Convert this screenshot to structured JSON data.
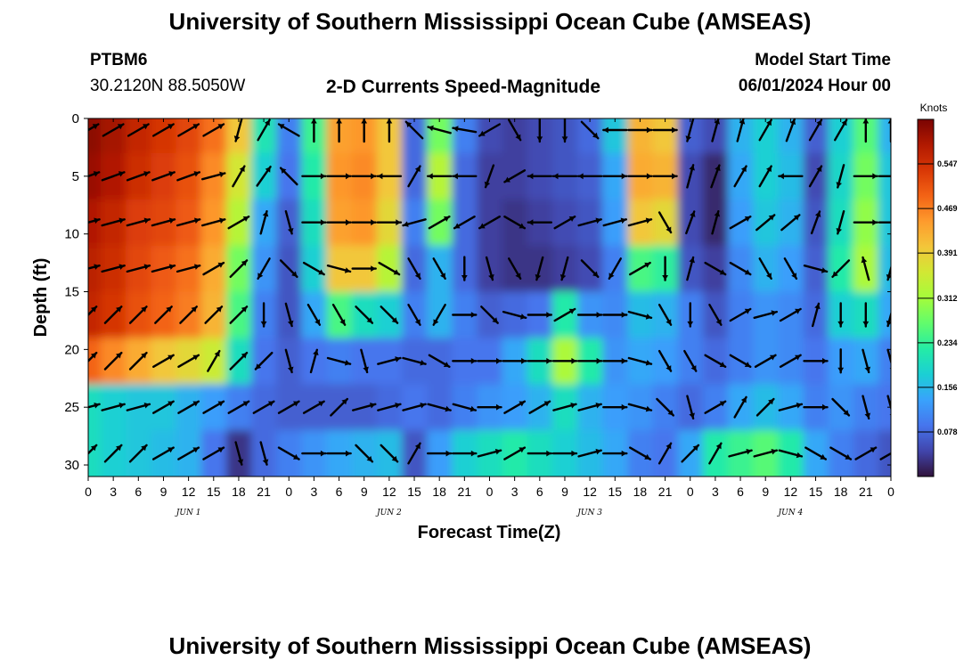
{
  "page": {
    "title": "University of Southern Mississippi Ocean Cube (AMSEAS)",
    "footer_title": "University of Southern Mississippi Ocean Cube (AMSEAS)",
    "station": "PTBM6",
    "coords": "30.2120N  88.5050W",
    "model_start_label": "Model Start Time",
    "model_start_value": "06/01/2024 Hour 00"
  },
  "chart_data": {
    "type": "heatmap",
    "title": "2-D Currents Speed-Magnitude",
    "xlabel": "Forecast Time(Z)",
    "ylabel": "Depth (ft)",
    "x_range_hours": [
      0,
      96
    ],
    "ylim": [
      0,
      31
    ],
    "y_inverted": true,
    "x_ticks": [
      "0",
      "3",
      "6",
      "9",
      "12",
      "15",
      "18",
      "21",
      "0",
      "3",
      "6",
      "9",
      "12",
      "15",
      "18",
      "21",
      "0",
      "3",
      "6",
      "9",
      "12",
      "15",
      "18",
      "21",
      "0",
      "3",
      "6",
      "9",
      "12",
      "15",
      "18",
      "21",
      "0"
    ],
    "y_ticks": [
      "0",
      "5",
      "10",
      "15",
      "20",
      "25",
      "30"
    ],
    "day_labels": [
      "JUN 1",
      "JUN 2",
      "JUN 3",
      "JUN 4"
    ],
    "colorbar": {
      "unit": "Knots",
      "ticks": [
        "0.547",
        "0.469",
        "0.391",
        "0.312",
        "0.234",
        "0.156",
        "0.078"
      ],
      "tick_values": [
        0.547,
        0.469,
        0.391,
        0.312,
        0.234,
        0.156,
        0.078
      ],
      "range": [
        0,
        0.625
      ],
      "colors": [
        "#30123b",
        "#4145ab",
        "#4675ed",
        "#39a2fc",
        "#1bcfd4",
        "#24eca6",
        "#61fc6c",
        "#a4fc3b",
        "#d1e834",
        "#f3c63a",
        "#fe9b2d",
        "#f36315",
        "#d93806",
        "#b11901",
        "#7a0402"
      ]
    },
    "depths_ft": [
      1,
      5,
      9,
      13,
      17,
      21,
      25,
      29
    ],
    "hours": [
      0,
      3,
      6,
      9,
      12,
      15,
      18,
      21,
      24,
      27,
      30,
      33,
      36,
      39,
      42,
      45,
      48,
      51,
      54,
      57,
      60,
      63,
      66,
      69,
      72,
      75,
      78,
      81,
      84,
      87,
      90,
      93,
      96
    ],
    "speed_knots": [
      [
        0.61,
        0.59,
        0.56,
        0.54,
        0.52,
        0.48,
        0.4,
        0.21,
        0.1,
        0.24,
        0.44,
        0.45,
        0.4,
        0.08,
        0.28,
        0.1,
        0.05,
        0.04,
        0.05,
        0.06,
        0.08,
        0.17,
        0.42,
        0.4,
        0.07,
        0.05,
        0.15,
        0.18,
        0.15,
        0.07,
        0.18,
        0.26,
        0.15
      ],
      [
        0.6,
        0.58,
        0.55,
        0.53,
        0.51,
        0.46,
        0.36,
        0.18,
        0.09,
        0.22,
        0.45,
        0.46,
        0.4,
        0.08,
        0.33,
        0.08,
        0.04,
        0.04,
        0.05,
        0.06,
        0.07,
        0.14,
        0.43,
        0.42,
        0.05,
        0.02,
        0.14,
        0.18,
        0.16,
        0.05,
        0.19,
        0.28,
        0.17
      ],
      [
        0.58,
        0.56,
        0.53,
        0.52,
        0.5,
        0.45,
        0.33,
        0.14,
        0.07,
        0.2,
        0.44,
        0.45,
        0.38,
        0.1,
        0.28,
        0.08,
        0.04,
        0.03,
        0.04,
        0.05,
        0.06,
        0.13,
        0.4,
        0.38,
        0.05,
        0.02,
        0.13,
        0.17,
        0.15,
        0.06,
        0.2,
        0.3,
        0.17
      ],
      [
        0.57,
        0.55,
        0.52,
        0.5,
        0.48,
        0.43,
        0.28,
        0.12,
        0.06,
        0.18,
        0.4,
        0.4,
        0.33,
        0.08,
        0.15,
        0.08,
        0.04,
        0.03,
        0.03,
        0.04,
        0.05,
        0.1,
        0.25,
        0.23,
        0.06,
        0.04,
        0.11,
        0.15,
        0.13,
        0.07,
        0.22,
        0.32,
        0.16
      ],
      [
        0.56,
        0.54,
        0.51,
        0.49,
        0.47,
        0.42,
        0.25,
        0.1,
        0.06,
        0.14,
        0.25,
        0.2,
        0.18,
        0.1,
        0.15,
        0.1,
        0.07,
        0.08,
        0.09,
        0.22,
        0.12,
        0.11,
        0.16,
        0.15,
        0.1,
        0.06,
        0.1,
        0.12,
        0.11,
        0.08,
        0.18,
        0.2,
        0.14
      ],
      [
        0.49,
        0.46,
        0.43,
        0.4,
        0.38,
        0.35,
        0.2,
        0.09,
        0.07,
        0.09,
        0.1,
        0.09,
        0.09,
        0.08,
        0.08,
        0.09,
        0.09,
        0.14,
        0.2,
        0.32,
        0.22,
        0.12,
        0.14,
        0.13,
        0.1,
        0.08,
        0.1,
        0.12,
        0.11,
        0.09,
        0.13,
        0.14,
        0.1
      ],
      [
        0.2,
        0.18,
        0.17,
        0.17,
        0.15,
        0.13,
        0.1,
        0.08,
        0.07,
        0.07,
        0.07,
        0.07,
        0.08,
        0.09,
        0.08,
        0.1,
        0.12,
        0.13,
        0.15,
        0.2,
        0.15,
        0.13,
        0.12,
        0.1,
        0.08,
        0.1,
        0.14,
        0.16,
        0.14,
        0.1,
        0.12,
        0.1,
        0.09
      ],
      [
        0.2,
        0.18,
        0.17,
        0.16,
        0.15,
        0.09,
        0.03,
        0.08,
        0.1,
        0.12,
        0.14,
        0.15,
        0.16,
        0.06,
        0.13,
        0.18,
        0.2,
        0.22,
        0.2,
        0.18,
        0.16,
        0.14,
        0.1,
        0.09,
        0.14,
        0.22,
        0.24,
        0.26,
        0.22,
        0.14,
        0.1,
        0.08,
        0.06
      ]
    ],
    "vector_depths_ft": [
      1,
      5,
      9,
      13,
      17,
      21,
      25,
      29
    ],
    "vector_hours": [
      0,
      3,
      6,
      9,
      12,
      15,
      18,
      21,
      24,
      27,
      30,
      33,
      36,
      39,
      42,
      45,
      48,
      51,
      54,
      57,
      60,
      63,
      66,
      69,
      72,
      75,
      78,
      81,
      84,
      87,
      90,
      93,
      96
    ],
    "vector_direction_deg": [
      [
        60,
        60,
        60,
        60,
        60,
        60,
        195,
        30,
        300,
        0,
        0,
        0,
        0,
        315,
        285,
        280,
        240,
        150,
        180,
        180,
        135,
        270,
        90,
        90,
        195,
        15,
        15,
        30,
        20,
        30,
        30,
        0,
        0
      ],
      [
        70,
        70,
        70,
        70,
        70,
        75,
        30,
        35,
        315,
        90,
        90,
        90,
        270,
        30,
        270,
        270,
        200,
        240,
        270,
        270,
        270,
        90,
        90,
        90,
        15,
        20,
        30,
        30,
        270,
        30,
        195,
        90,
        90
      ],
      [
        75,
        75,
        75,
        75,
        75,
        75,
        60,
        15,
        165,
        90,
        90,
        90,
        90,
        255,
        60,
        240,
        240,
        120,
        270,
        60,
        75,
        75,
        75,
        150,
        20,
        15,
        60,
        50,
        50,
        20,
        195,
        90,
        90
      ],
      [
        75,
        75,
        75,
        75,
        75,
        60,
        45,
        210,
        135,
        120,
        105,
        90,
        120,
        150,
        150,
        180,
        165,
        150,
        195,
        195,
        135,
        210,
        60,
        180,
        15,
        120,
        120,
        150,
        150,
        105,
        225,
        345,
        195
      ],
      [
        45,
        45,
        45,
        45,
        45,
        45,
        45,
        180,
        165,
        150,
        150,
        135,
        135,
        150,
        210,
        90,
        135,
        105,
        90,
        60,
        90,
        90,
        105,
        150,
        180,
        150,
        60,
        75,
        60,
        15,
        180,
        180,
        195
      ],
      [
        45,
        45,
        45,
        60,
        60,
        30,
        45,
        225,
        165,
        15,
        105,
        165,
        75,
        105,
        120,
        90,
        90,
        90,
        90,
        90,
        90,
        90,
        105,
        150,
        150,
        120,
        120,
        60,
        60,
        90,
        180,
        165,
        165
      ],
      [
        75,
        75,
        75,
        60,
        60,
        60,
        60,
        60,
        60,
        60,
        45,
        75,
        75,
        75,
        105,
        105,
        90,
        60,
        60,
        75,
        75,
        90,
        105,
        135,
        165,
        60,
        30,
        45,
        75,
        90,
        135,
        165,
        165
      ],
      [
        45,
        45,
        45,
        60,
        60,
        60,
        165,
        165,
        120,
        90,
        90,
        135,
        135,
        30,
        90,
        90,
        75,
        60,
        90,
        90,
        75,
        90,
        120,
        30,
        45,
        30,
        75,
        75,
        105,
        120,
        120,
        60,
        60
      ]
    ]
  }
}
